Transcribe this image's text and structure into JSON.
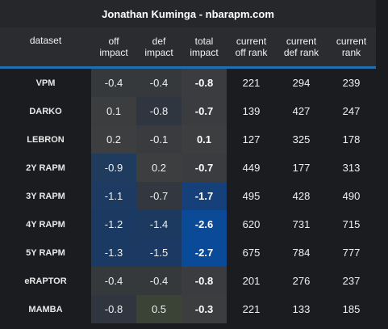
{
  "title": "Jonathan Kuminga - nbarapm.com",
  "headers": {
    "dataset": "dataset",
    "off_impact": "off\nimpact",
    "def_impact": "def\nimpact",
    "total_impact": "total\nimpact",
    "current_off_rank": "current\noff rank",
    "current_def_rank": "current\ndef rank",
    "current_rank": "current\nrank"
  },
  "rows": [
    {
      "dataset": "VPM",
      "off": "-0.4",
      "def": "-0.4",
      "total": "-0.8",
      "off_rank": "221",
      "def_rank": "294",
      "rank": "239",
      "colors": {
        "off": "#36393c",
        "def": "#36393c",
        "total": "#3a3c3f"
      }
    },
    {
      "dataset": "DARKO",
      "off": "0.1",
      "def": "-0.8",
      "total": "-0.7",
      "off_rank": "139",
      "def_rank": "427",
      "rank": "247",
      "colors": {
        "off": "#3b3d3f",
        "def": "#303640",
        "total": "#3a3c3f"
      }
    },
    {
      "dataset": "LEBRON",
      "off": "0.2",
      "def": "-0.1",
      "total": "0.1",
      "off_rank": "127",
      "def_rank": "325",
      "rank": "178",
      "colors": {
        "off": "#3c3e3f",
        "def": "#393b3e",
        "total": "#3c3e3f"
      }
    },
    {
      "dataset": "2Y RAPM",
      "off": "-0.9",
      "def": "0.2",
      "total": "-0.7",
      "off_rank": "449",
      "def_rank": "177",
      "rank": "313",
      "colors": {
        "off": "#1f3c5e",
        "def": "#3c3e3f",
        "total": "#3a3c3f"
      }
    },
    {
      "dataset": "3Y RAPM",
      "off": "-1.1",
      "def": "-0.7",
      "total": "-1.7",
      "off_rank": "495",
      "def_rank": "428",
      "rank": "490",
      "colors": {
        "off": "#1c3a62",
        "def": "#323740",
        "total": "#16407a"
      }
    },
    {
      "dataset": "4Y RAPM",
      "off": "-1.2",
      "def": "-1.4",
      "total": "-2.6",
      "off_rank": "620",
      "def_rank": "731",
      "rank": "715",
      "colors": {
        "off": "#1a3963",
        "def": "#1c3960",
        "total": "#0b4a96"
      }
    },
    {
      "dataset": "5Y RAPM",
      "off": "-1.3",
      "def": "-1.5",
      "total": "-2.7",
      "off_rank": "675",
      "def_rank": "784",
      "rank": "777",
      "colors": {
        "off": "#1a3963",
        "def": "#1b3962",
        "total": "#0a4b99"
      }
    },
    {
      "dataset": "eRAPTOR",
      "off": "-0.4",
      "def": "-0.4",
      "total": "-0.8",
      "off_rank": "201",
      "def_rank": "276",
      "rank": "237",
      "colors": {
        "off": "#36393c",
        "def": "#36393c",
        "total": "#3a3c3f"
      }
    },
    {
      "dataset": "MAMBA",
      "off": "-0.8",
      "def": "0.5",
      "total": "-0.3",
      "off_rank": "221",
      "def_rank": "133",
      "rank": "185",
      "colors": {
        "off": "#30363f",
        "def": "#3b4236",
        "total": "#3b3d3f"
      }
    }
  ],
  "colors": {
    "background": "#1b1c1f",
    "header_bg": "#2a2c30",
    "accent_line": "#1f6fb5"
  }
}
